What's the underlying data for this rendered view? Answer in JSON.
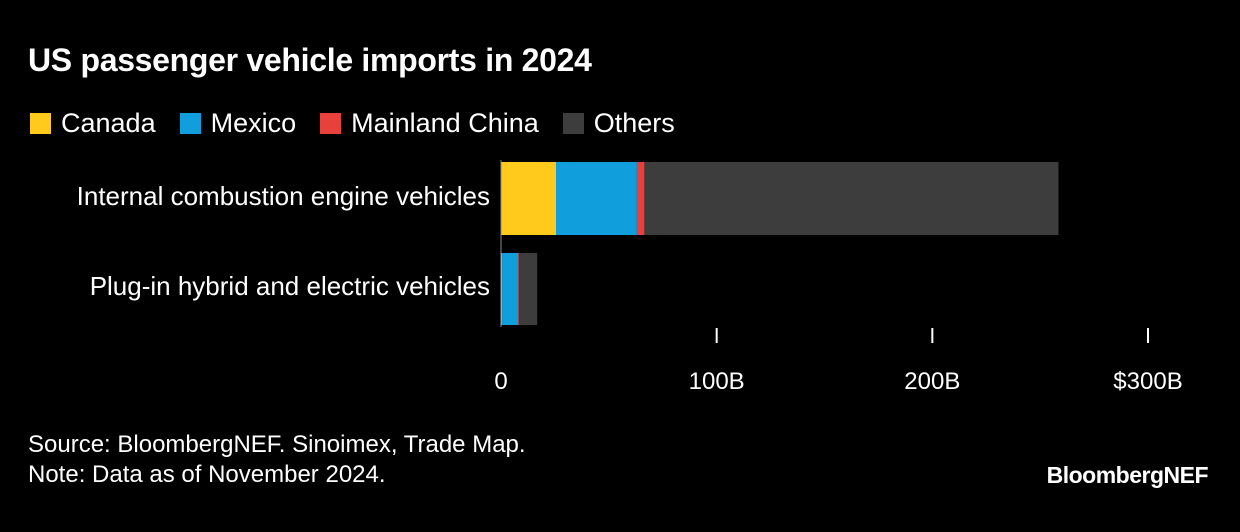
{
  "chart_data": {
    "type": "bar",
    "orientation": "horizontal",
    "stacked": true,
    "title": "US passenger vehicle imports in 2024",
    "categories": [
      "Internal combustion engine vehicles",
      "Plug-in hybrid and electric vehicles"
    ],
    "series": [
      {
        "name": "Canada",
        "color": "#FFCA1C",
        "values": [
          25.5,
          0.5
        ]
      },
      {
        "name": "Mexico",
        "color": "#109FDC",
        "values": [
          37.5,
          7.5
        ]
      },
      {
        "name": "Mainland China",
        "color": "#E8413C",
        "values": [
          3.5,
          0.3
        ]
      },
      {
        "name": "Others",
        "color": "#3D3D3D",
        "values": [
          192,
          8.5
        ]
      }
    ],
    "xlim": [
      0,
      300
    ],
    "ticks": [
      {
        "value": 0,
        "label": "0"
      },
      {
        "value": 100,
        "label": "100B"
      },
      {
        "value": 200,
        "label": "200B"
      },
      {
        "value": 300,
        "label": "$300B"
      }
    ],
    "xlabel": "",
    "ylabel": "",
    "grid": false,
    "legend_position": "top-left"
  },
  "footer": {
    "source": "Source: BloombergNEF. Sinoimex, Trade Map.",
    "note": "Note: Data as of November 2024."
  },
  "brand": "BloombergNEF"
}
